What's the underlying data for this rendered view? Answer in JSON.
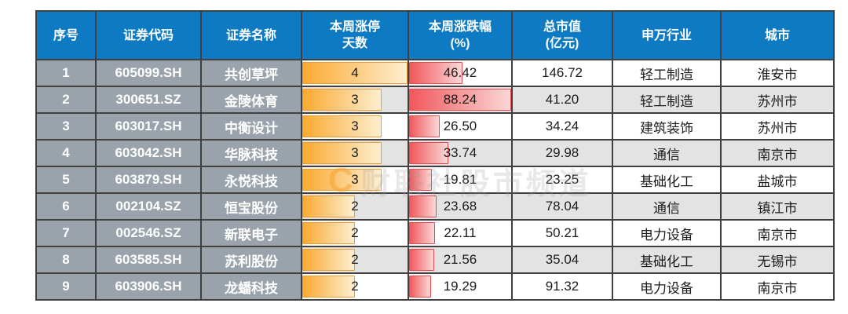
{
  "table": {
    "columns": [
      {
        "key": "seq",
        "label": "序号"
      },
      {
        "key": "code",
        "label": "证券代码"
      },
      {
        "key": "name",
        "label": "证券名称"
      },
      {
        "key": "limit_days",
        "label": "本周涨停\n天数"
      },
      {
        "key": "change_pct",
        "label": "本周涨跌幅\n(%)"
      },
      {
        "key": "market_cap",
        "label": "总市值\n(亿元)"
      },
      {
        "key": "industry",
        "label": "申万行业"
      },
      {
        "key": "city",
        "label": "城市"
      }
    ],
    "rows": [
      {
        "seq": "1",
        "code": "605099.SH",
        "name": "共创草坪",
        "limit_days": 4,
        "change_pct": "46.42",
        "market_cap": "146.72",
        "industry": "轻工制造",
        "city": "淮安市"
      },
      {
        "seq": "2",
        "code": "300651.SZ",
        "name": "金陵体育",
        "limit_days": 3,
        "change_pct": "88.24",
        "market_cap": "41.20",
        "industry": "轻工制造",
        "city": "苏州市"
      },
      {
        "seq": "3",
        "code": "603017.SH",
        "name": "中衡设计",
        "limit_days": 3,
        "change_pct": "26.50",
        "market_cap": "34.24",
        "industry": "建筑装饰",
        "city": "苏州市"
      },
      {
        "seq": "4",
        "code": "603042.SH",
        "name": "华脉科技",
        "limit_days": 3,
        "change_pct": "33.74",
        "market_cap": "29.98",
        "industry": "通信",
        "city": "南京市"
      },
      {
        "seq": "5",
        "code": "603879.SH",
        "name": "永悦科技",
        "limit_days": 3,
        "change_pct": "19.81",
        "market_cap": "23.25",
        "industry": "基础化工",
        "city": "盐城市"
      },
      {
        "seq": "6",
        "code": "002104.SZ",
        "name": "恒宝股份",
        "limit_days": 2,
        "change_pct": "23.68",
        "market_cap": "78.04",
        "industry": "通信",
        "city": "镇江市"
      },
      {
        "seq": "7",
        "code": "002546.SZ",
        "name": "新联电子",
        "limit_days": 2,
        "change_pct": "22.11",
        "market_cap": "50.21",
        "industry": "电力设备",
        "city": "南京市"
      },
      {
        "seq": "8",
        "code": "603585.SH",
        "name": "苏利股份",
        "limit_days": 2,
        "change_pct": "21.56",
        "market_cap": "35.04",
        "industry": "基础化工",
        "city": "无锡市"
      },
      {
        "seq": "9",
        "code": "603906.SH",
        "name": "龙蟠科技",
        "limit_days": 2,
        "change_pct": "19.29",
        "market_cap": "91.32",
        "industry": "电力设备",
        "city": "南京市"
      }
    ]
  },
  "watermark": {
    "logo": "C",
    "text": "财联社股市频道"
  },
  "colors": {
    "header_bg": "#0d7ac3",
    "header_text": "#ffffff",
    "left_column_bg": "#9aa3ab",
    "left_column_text": "#ffffff",
    "row_odd_bg": "#ffffff",
    "row_even_bg": "#e3e3e3",
    "grid_border": "#404040",
    "limit_days_bar": "#fbaa32",
    "change_pct_bar": "#f1585c",
    "watermark_orange": "#f59b22"
  },
  "chart_data": {
    "type": "table",
    "title": "",
    "columns": [
      "序号",
      "证券代码",
      "证券名称",
      "本周涨停天数",
      "本周涨跌幅(%)",
      "总市值(亿元)",
      "申万行业",
      "城市"
    ],
    "rows": [
      [
        "1",
        "605099.SH",
        "共创草坪",
        4,
        46.42,
        146.72,
        "轻工制造",
        "淮安市"
      ],
      [
        "2",
        "300651.SZ",
        "金陵体育",
        3,
        88.24,
        41.2,
        "轻工制造",
        "苏州市"
      ],
      [
        "3",
        "603017.SH",
        "中衡设计",
        3,
        26.5,
        34.24,
        "建筑装饰",
        "苏州市"
      ],
      [
        "4",
        "603042.SH",
        "华脉科技",
        3,
        33.74,
        29.98,
        "通信",
        "南京市"
      ],
      [
        "5",
        "603879.SH",
        "永悦科技",
        3,
        19.81,
        23.25,
        "基础化工",
        "盐城市"
      ],
      [
        "6",
        "002104.SZ",
        "恒宝股份",
        2,
        23.68,
        78.04,
        "通信",
        "镇江市"
      ],
      [
        "7",
        "002546.SZ",
        "新联电子",
        2,
        22.11,
        50.21,
        "电力设备",
        "南京市"
      ],
      [
        "8",
        "603585.SH",
        "苏利股份",
        2,
        21.56,
        35.04,
        "基础化工",
        "无锡市"
      ],
      [
        "9",
        "603906.SH",
        "龙蟠科技",
        2,
        19.29,
        91.32,
        "电力设备",
        "南京市"
      ]
    ],
    "databar_columns": [
      {
        "column": "本周涨停天数",
        "style": "orange-gradient",
        "max": 4
      },
      {
        "column": "本周涨跌幅(%)",
        "style": "red-gradient",
        "max": 88.24
      }
    ]
  }
}
